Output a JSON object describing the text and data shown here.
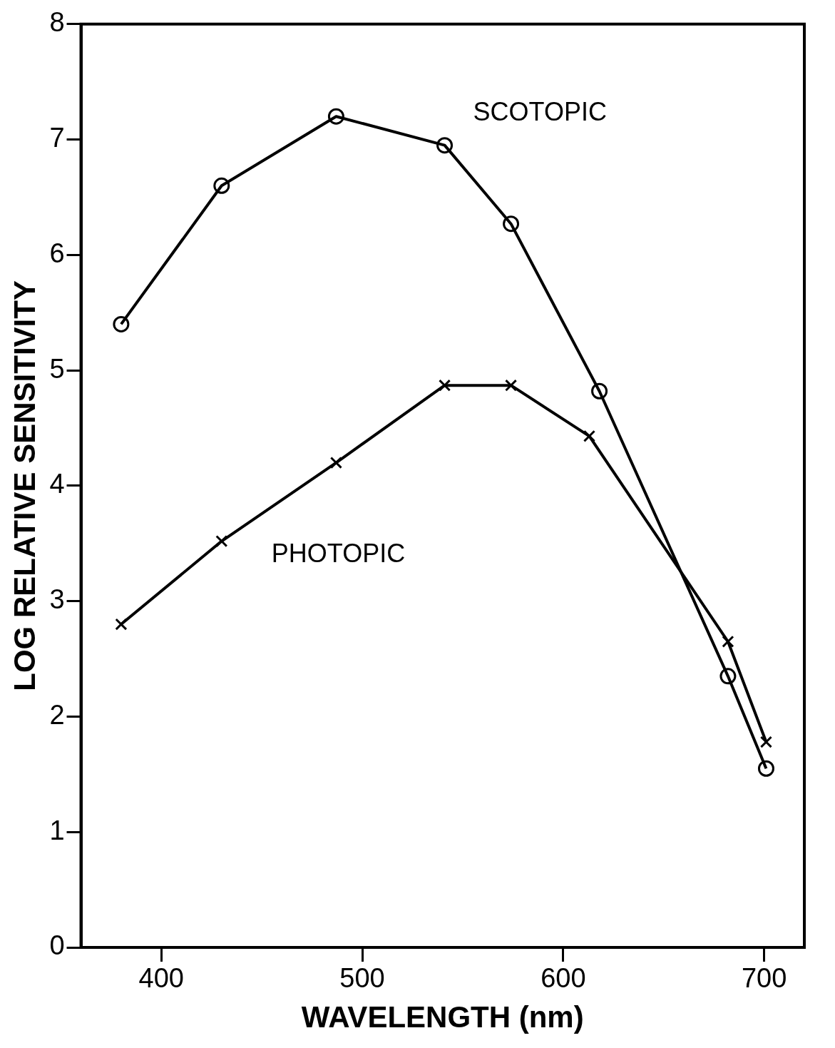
{
  "chart_data": {
    "type": "line",
    "xlabel": "WAVELENGTH (nm)",
    "ylabel": "LOG RELATIVE SENSITIVITY",
    "xlim": [
      360,
      720
    ],
    "xticks": [
      400,
      500,
      600,
      700
    ],
    "ylim": [
      0,
      8
    ],
    "yticks": [
      0,
      1,
      2,
      3,
      4,
      5,
      6,
      7,
      8
    ],
    "grid": false,
    "legend": false,
    "series": [
      {
        "name": "SCOTOPIC",
        "color": "#000000",
        "marker": "circle",
        "x": [
          380,
          430,
          487,
          541,
          574,
          618,
          682,
          701
        ],
        "values": [
          5.4,
          6.6,
          7.2,
          6.95,
          6.27,
          4.82,
          2.35,
          1.55
        ]
      },
      {
        "name": "PHOTOPIC",
        "color": "#000000",
        "marker": "cross",
        "x": [
          380,
          430,
          487,
          541,
          574,
          613,
          682,
          701
        ],
        "values": [
          2.8,
          3.52,
          4.2,
          4.87,
          4.87,
          4.43,
          2.65,
          1.78
        ]
      }
    ]
  }
}
